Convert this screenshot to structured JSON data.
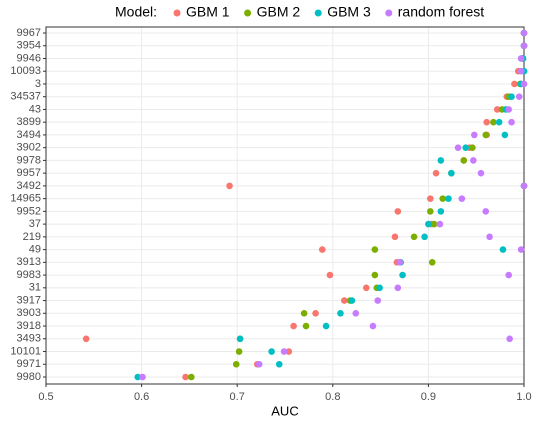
{
  "chart_data": {
    "type": "dot",
    "x_label": "AUC",
    "legend_title": "Model:",
    "legend_position": "top",
    "grid": true,
    "xlim": [
      0.5,
      1.0
    ],
    "xticks": [
      0.5,
      0.6,
      0.7,
      0.8,
      0.9,
      {
        "value": 1,
        "label": "1.0"
      }
    ],
    "categories": [
      "9967",
      "3954",
      "9946",
      "10093",
      "3",
      "34537",
      "43",
      "3899",
      "3494",
      "3902",
      "9978",
      "9957",
      "3492",
      "14965",
      "9952",
      "37",
      "219",
      "49",
      "3913",
      "9983",
      "31",
      "3917",
      "3903",
      "3918",
      "3493",
      "10101",
      "9971",
      "9980"
    ],
    "series": [
      {
        "name": "GBM 1",
        "color": "#F8766D",
        "values": [
          1.0,
          1.0,
          0.998,
          0.994,
          0.99,
          0.982,
          0.972,
          0.961,
          0.961,
          0.943,
          0.937,
          0.908,
          0.692,
          0.902,
          0.868,
          0.903,
          0.865,
          0.789,
          0.867,
          0.797,
          0.835,
          0.812,
          0.782,
          0.759,
          0.542,
          0.754,
          0.721,
          0.646
        ]
      },
      {
        "name": "GBM 2",
        "color": "#7CAE00",
        "values": [
          1.0,
          1.0,
          0.999,
          1.0,
          0.996,
          0.984,
          0.977,
          0.968,
          0.96,
          0.946,
          0.937,
          0.924,
          1.0,
          0.915,
          0.902,
          0.906,
          0.885,
          0.844,
          0.904,
          0.844,
          0.846,
          0.818,
          0.77,
          0.772,
          0.703,
          0.702,
          0.699,
          0.652
        ]
      },
      {
        "name": "GBM 3",
        "color": "#00BFC4",
        "values": [
          1.0,
          1.0,
          0.999,
          1.0,
          0.997,
          0.987,
          0.981,
          0.974,
          0.98,
          0.939,
          0.913,
          0.924,
          1.0,
          0.921,
          0.913,
          0.9,
          0.896,
          0.978,
          0.871,
          0.873,
          0.849,
          0.82,
          0.808,
          0.793,
          0.703,
          0.736,
          0.744,
          0.596
        ]
      },
      {
        "name": "random forest",
        "color": "#C77CFF",
        "values": [
          1.0,
          1.0,
          0.997,
          0.997,
          1.0,
          0.995,
          0.984,
          0.987,
          0.948,
          0.931,
          0.947,
          0.955,
          1.0,
          0.935,
          0.96,
          0.912,
          0.964,
          0.997,
          0.87,
          0.984,
          0.868,
          0.847,
          0.824,
          0.842,
          0.985,
          0.749,
          0.723,
          0.601
        ]
      }
    ]
  }
}
